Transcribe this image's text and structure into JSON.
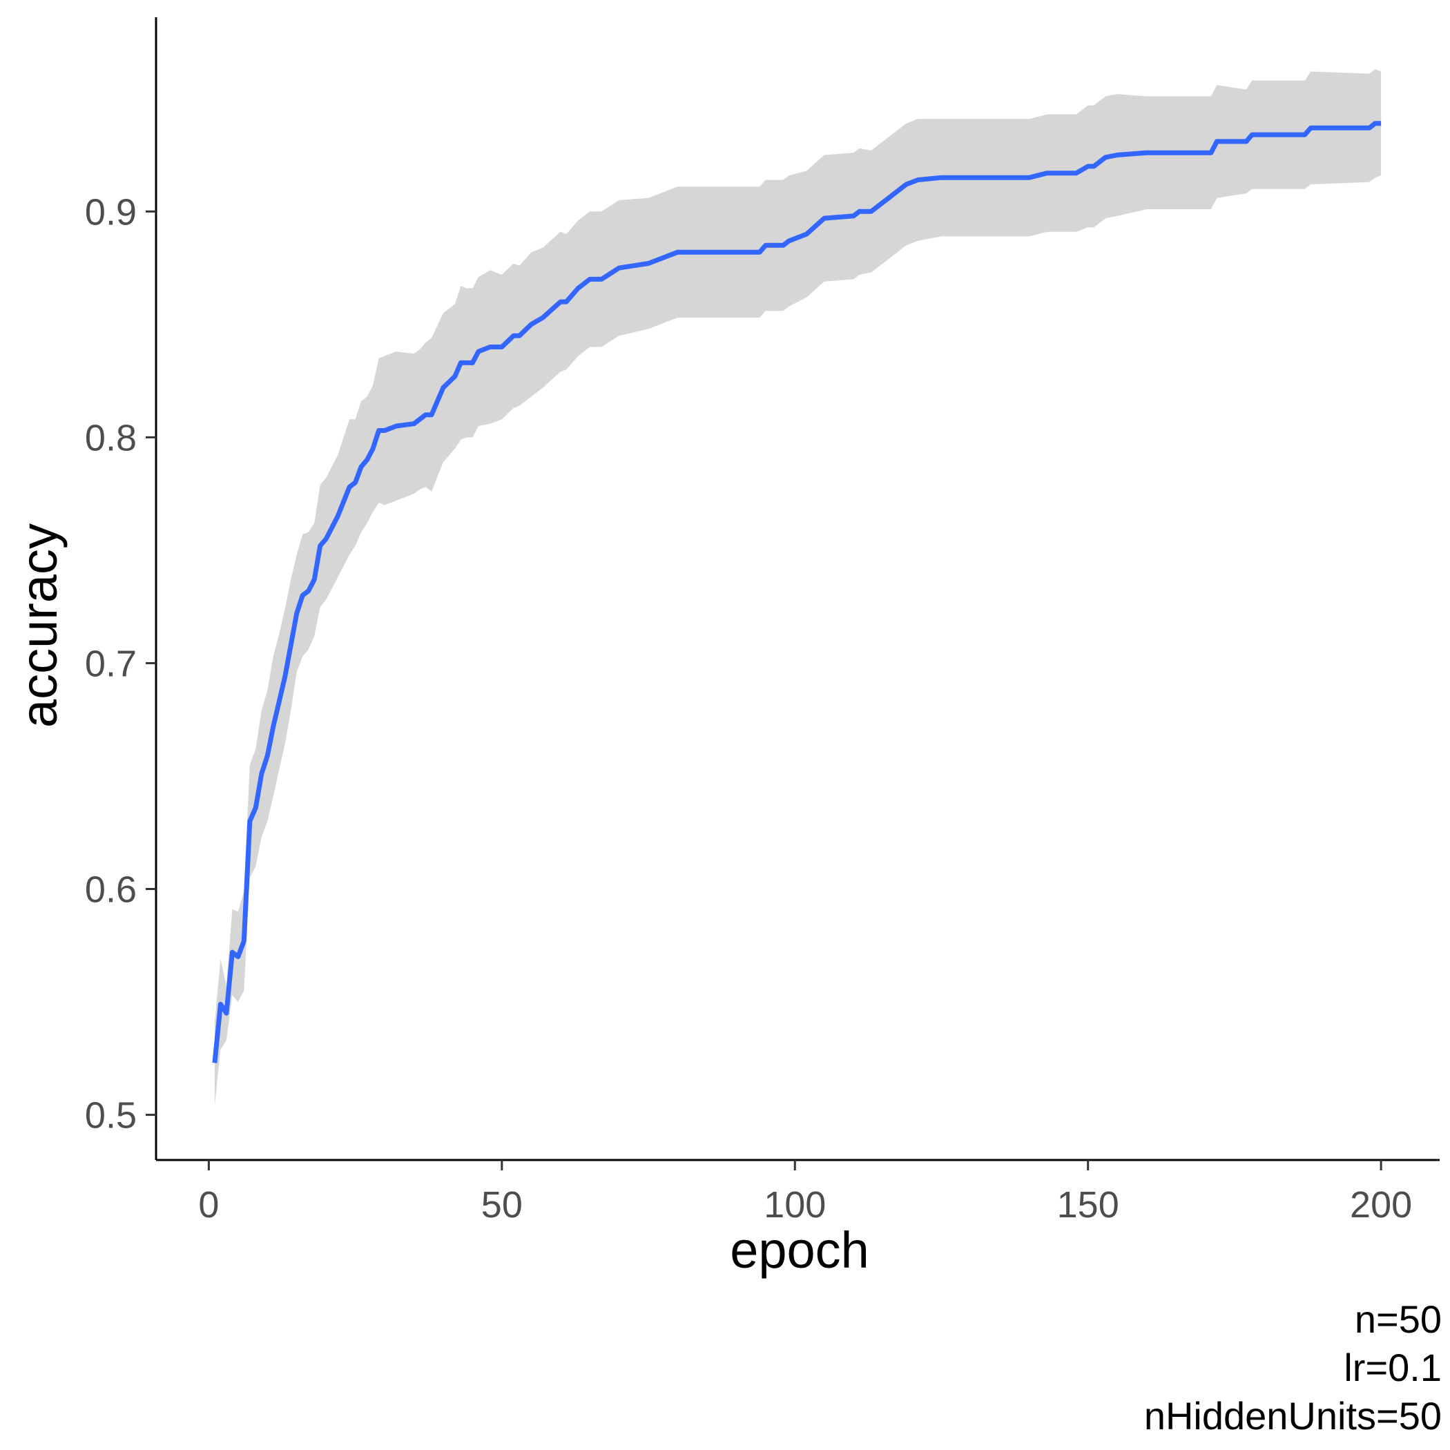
{
  "chart_data": {
    "type": "line",
    "xlabel": "epoch",
    "ylabel": "accuracy",
    "xlim": [
      -9,
      210
    ],
    "ylim": [
      0.48,
      0.986
    ],
    "xticks": [
      0,
      50,
      100,
      150,
      200
    ],
    "yticks": [
      0.5,
      0.6,
      0.7,
      0.8,
      0.9
    ],
    "ytick_labels": [
      "0.5",
      "0.6",
      "0.7",
      "0.8",
      "0.9"
    ],
    "grid": false,
    "caption": [
      "n=50",
      "lr=0.1",
      "nHiddenUnits=50"
    ],
    "colors": {
      "line": "#3366ff",
      "ribbon": "#d6d6d6",
      "axis": "#000000",
      "tick_text": "#4d4d4d"
    },
    "series": [
      {
        "x": [
          1,
          2,
          3,
          4,
          5,
          6,
          7,
          8,
          9,
          10,
          11,
          12,
          13,
          14,
          15,
          16,
          17,
          18,
          19,
          20,
          22,
          24,
          25,
          26,
          27,
          28,
          29,
          30,
          32,
          35,
          36,
          37,
          38,
          40,
          42,
          43,
          44,
          45,
          46,
          48,
          50,
          52,
          53,
          55,
          57,
          60,
          61,
          63,
          65,
          67,
          70,
          75,
          80,
          85,
          94,
          95,
          98,
          99,
          102,
          105,
          110,
          111,
          113,
          116,
          119,
          121,
          125,
          130,
          140,
          143,
          145,
          148,
          150,
          151,
          153,
          155,
          160,
          165,
          171,
          172,
          177,
          178,
          187,
          188,
          198,
          199,
          200
        ],
        "y": [
          0.523,
          0.549,
          0.545,
          0.572,
          0.57,
          0.577,
          0.63,
          0.636,
          0.651,
          0.659,
          0.672,
          0.683,
          0.694,
          0.708,
          0.722,
          0.73,
          0.732,
          0.737,
          0.752,
          0.755,
          0.765,
          0.778,
          0.78,
          0.787,
          0.79,
          0.795,
          0.803,
          0.803,
          0.805,
          0.806,
          0.808,
          0.81,
          0.81,
          0.822,
          0.827,
          0.833,
          0.833,
          0.833,
          0.838,
          0.84,
          0.84,
          0.845,
          0.845,
          0.85,
          0.853,
          0.86,
          0.86,
          0.866,
          0.87,
          0.87,
          0.875,
          0.877,
          0.882,
          0.882,
          0.882,
          0.885,
          0.885,
          0.887,
          0.89,
          0.897,
          0.898,
          0.9,
          0.9,
          0.906,
          0.912,
          0.914,
          0.915,
          0.915,
          0.915,
          0.917,
          0.917,
          0.917,
          0.92,
          0.92,
          0.924,
          0.925,
          0.926,
          0.926,
          0.926,
          0.931,
          0.931,
          0.934,
          0.934,
          0.937,
          0.937,
          0.939,
          0.939
        ],
        "lower": [
          0.504,
          0.529,
          0.533,
          0.553,
          0.55,
          0.555,
          0.605,
          0.61,
          0.623,
          0.63,
          0.641,
          0.653,
          0.664,
          0.679,
          0.696,
          0.703,
          0.706,
          0.712,
          0.725,
          0.728,
          0.738,
          0.748,
          0.752,
          0.758,
          0.762,
          0.767,
          0.771,
          0.77,
          0.772,
          0.775,
          0.777,
          0.778,
          0.776,
          0.789,
          0.795,
          0.799,
          0.8,
          0.8,
          0.805,
          0.806,
          0.808,
          0.813,
          0.814,
          0.818,
          0.822,
          0.829,
          0.83,
          0.836,
          0.84,
          0.84,
          0.845,
          0.848,
          0.853,
          0.853,
          0.853,
          0.856,
          0.856,
          0.858,
          0.862,
          0.869,
          0.87,
          0.872,
          0.873,
          0.879,
          0.885,
          0.887,
          0.889,
          0.889,
          0.889,
          0.891,
          0.891,
          0.891,
          0.893,
          0.893,
          0.897,
          0.898,
          0.901,
          0.901,
          0.901,
          0.906,
          0.908,
          0.91,
          0.91,
          0.912,
          0.913,
          0.915,
          0.916
        ],
        "upper": [
          0.541,
          0.569,
          0.557,
          0.591,
          0.59,
          0.599,
          0.655,
          0.662,
          0.679,
          0.688,
          0.703,
          0.713,
          0.724,
          0.737,
          0.748,
          0.757,
          0.758,
          0.762,
          0.779,
          0.782,
          0.792,
          0.808,
          0.808,
          0.816,
          0.818,
          0.823,
          0.835,
          0.836,
          0.838,
          0.837,
          0.839,
          0.842,
          0.844,
          0.855,
          0.859,
          0.867,
          0.866,
          0.866,
          0.871,
          0.874,
          0.872,
          0.877,
          0.876,
          0.882,
          0.884,
          0.891,
          0.89,
          0.896,
          0.9,
          0.9,
          0.905,
          0.906,
          0.911,
          0.911,
          0.911,
          0.914,
          0.914,
          0.916,
          0.918,
          0.925,
          0.926,
          0.928,
          0.927,
          0.933,
          0.939,
          0.941,
          0.941,
          0.941,
          0.941,
          0.943,
          0.943,
          0.943,
          0.947,
          0.947,
          0.951,
          0.952,
          0.951,
          0.951,
          0.951,
          0.956,
          0.954,
          0.958,
          0.958,
          0.962,
          0.961,
          0.963,
          0.962
        ]
      }
    ]
  }
}
